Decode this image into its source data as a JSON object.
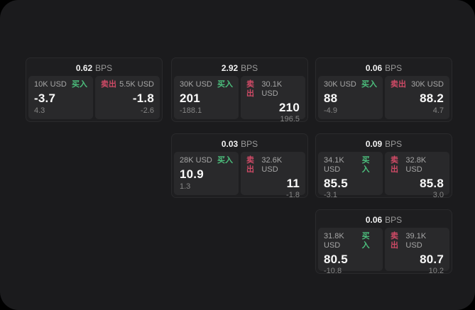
{
  "labels": {
    "bps_unit": "BPS",
    "buy": "买入",
    "sell": "卖出"
  },
  "colors": {
    "buy_green": "#4cbf7d",
    "sell_red": "#cf4a66",
    "window_bg": "#1b1b1d",
    "card_bg": "#1e1e20",
    "panel_bg": "#29292b"
  },
  "cards": [
    {
      "bps": "0.62",
      "buy": {
        "amount": "10K USD",
        "price": "-3.7",
        "change": "4.3"
      },
      "sell": {
        "amount": "5.5K USD",
        "price": "-1.8",
        "change": "-2.6"
      }
    },
    {
      "bps": "2.92",
      "buy": {
        "amount": "30K USD",
        "price": "201",
        "change": "-188.1"
      },
      "sell": {
        "amount": "30.1K USD",
        "price": "210",
        "change": "196.5"
      }
    },
    {
      "bps": "0.06",
      "buy": {
        "amount": "30K USD",
        "price": "88",
        "change": "-4.9"
      },
      "sell": {
        "amount": "30K USD",
        "price": "88.2",
        "change": "4.7"
      }
    },
    {
      "bps": "0.03",
      "buy": {
        "amount": "28K USD",
        "price": "10.9",
        "change": "1.3"
      },
      "sell": {
        "amount": "32.6K USD",
        "price": "11",
        "change": "-1.8"
      }
    },
    {
      "bps": "0.09",
      "buy": {
        "amount": "34.1K USD",
        "price": "85.5",
        "change": "-3.1"
      },
      "sell": {
        "amount": "32.8K USD",
        "price": "85.8",
        "change": "3.0"
      }
    },
    {
      "bps": "0.06",
      "buy": {
        "amount": "31.8K USD",
        "price": "80.5",
        "change": "-10.8"
      },
      "sell": {
        "amount": "39.1K USD",
        "price": "80.7",
        "change": "10.2"
      }
    }
  ]
}
